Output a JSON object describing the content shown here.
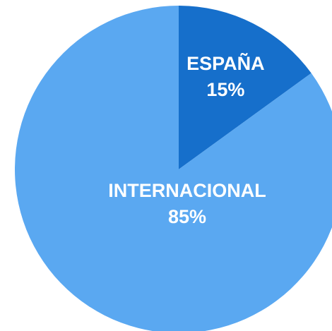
{
  "chart_data": {
    "type": "pie",
    "categories": [
      "ESPAÑA",
      "INTERNACIONAL"
    ],
    "values": [
      15,
      85
    ],
    "value_labels": [
      "15%",
      "85%"
    ],
    "colors": [
      "#166fcb",
      "#5aa8f1"
    ]
  }
}
